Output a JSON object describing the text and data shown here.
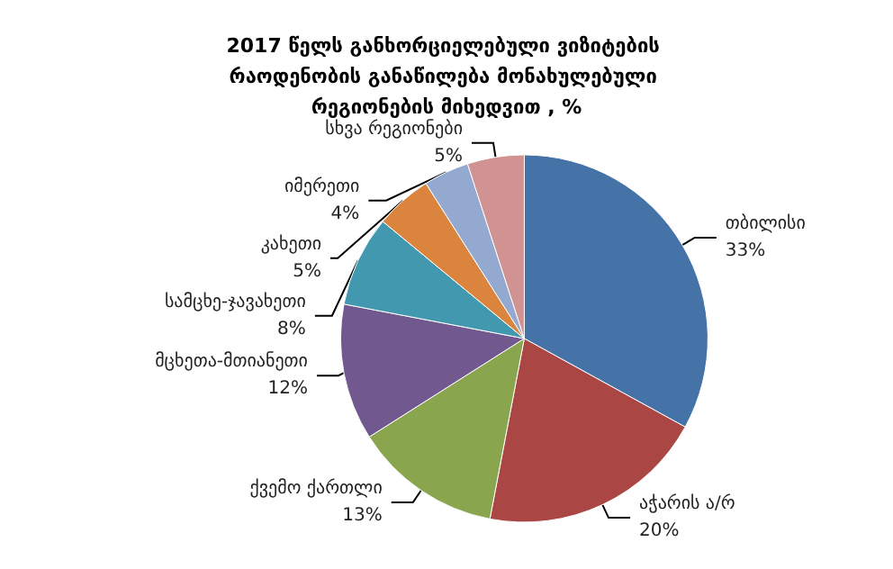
{
  "chart_data": {
    "type": "pie",
    "title": "2017 წელს განხორციელებული ვიზიტების რაოდენობის განაწილება მონახულებული რეგიონების მიხედვით , %",
    "categories": [
      "თბილისი",
      "აჭარის ა/რ",
      "ქვემო ქართლი",
      "მცხეთა-მთიანეთი",
      "სამცხე-ჯავახეთი",
      "კახეთი",
      "იმერეთი",
      "სხვა რეგიონები"
    ],
    "values": [
      33,
      20,
      13,
      12,
      8,
      5,
      4,
      5
    ],
    "value_labels": [
      "33%",
      "20%",
      "13%",
      "12%",
      "8%",
      "5%",
      "4%",
      "5%"
    ],
    "colors": [
      "#4572a7",
      "#aa4643",
      "#89a54e",
      "#71588f",
      "#4198af",
      "#db843d",
      "#93a9cf",
      "#d19392"
    ],
    "legend": false
  }
}
